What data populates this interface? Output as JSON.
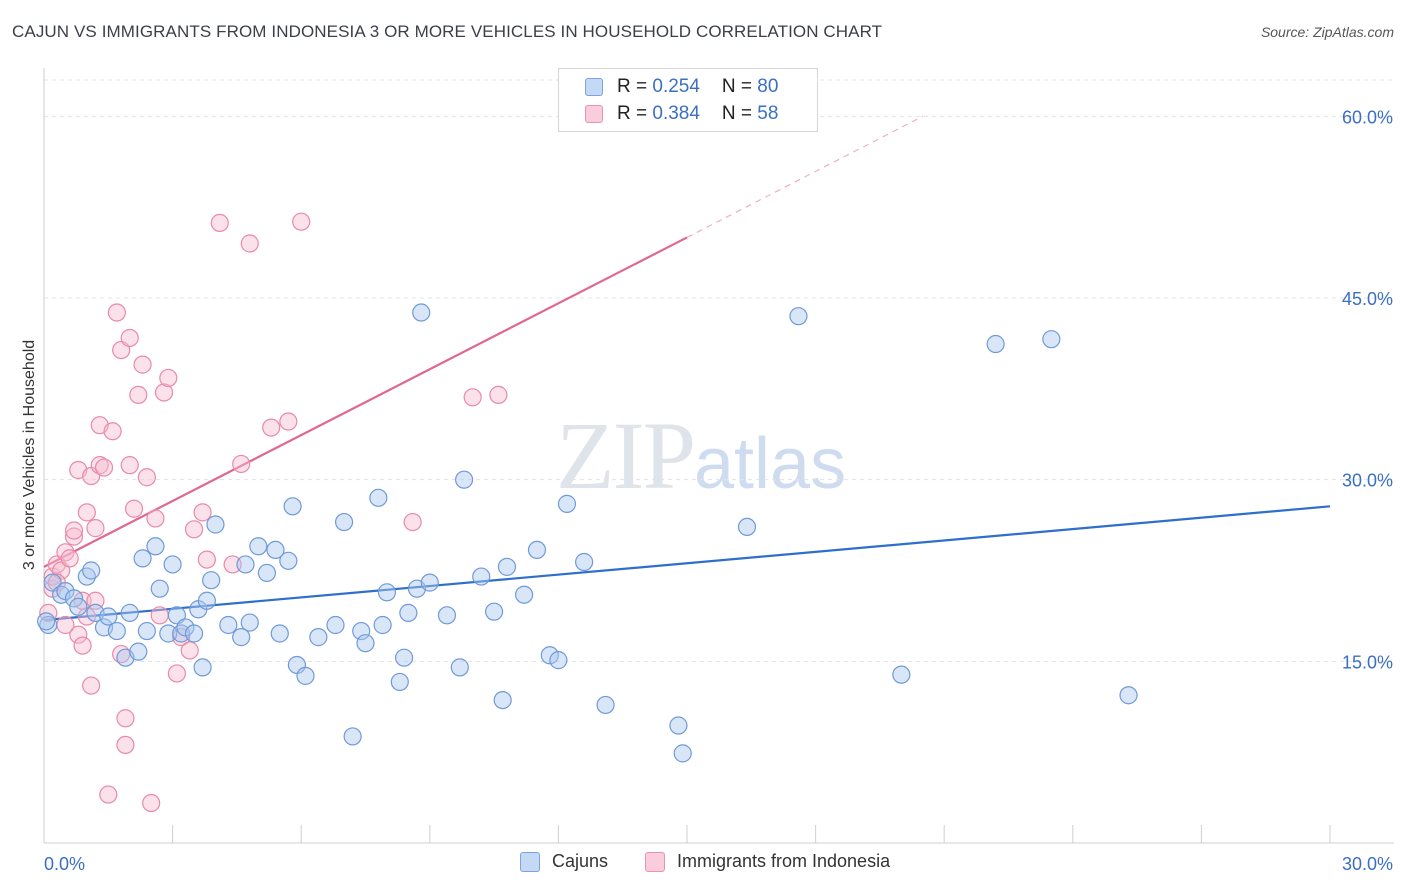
{
  "header": {
    "title": "CAJUN VS IMMIGRANTS FROM INDONESIA 3 OR MORE VEHICLES IN HOUSEHOLD CORRELATION CHART",
    "source": "Source: ZipAtlas.com"
  },
  "watermark": {
    "zip": "ZIP",
    "atlas": "atlas"
  },
  "legend": {
    "rows": [
      {
        "r_label": "R = ",
        "r_value": "0.254",
        "n_label": "N = ",
        "n_value": "80"
      },
      {
        "r_label": "R = ",
        "r_value": "0.384",
        "n_label": "N = ",
        "n_value": "58"
      }
    ]
  },
  "colors": {
    "cajuns_fill": "#aac8f0",
    "cajuns_stroke": "#6f9ad8",
    "cajuns_line": "#2f6fcc",
    "indo_fill": "#f6bcd0",
    "indo_stroke": "#e88aa8",
    "indo_line": "#e06890",
    "grid": "#e3e3e3",
    "axis_label": "#3a6fc4"
  },
  "chart_data": {
    "type": "scatter",
    "title": "CAJUN VS IMMIGRANTS FROM INDONESIA 3 OR MORE VEHICLES IN HOUSEHOLD CORRELATION CHART",
    "xlabel": "",
    "ylabel": "3 or more Vehicles in Household",
    "xlim": [
      0,
      30
    ],
    "ylim": [
      0,
      63
    ],
    "x_tick_labels": [
      "0.0%",
      "30.0%"
    ],
    "y_ticks": [
      15,
      30,
      45,
      60
    ],
    "y_tick_labels": [
      "15.0%",
      "30.0%",
      "45.0%",
      "60.0%"
    ],
    "grid": true,
    "legend_position": "bottom",
    "series": [
      {
        "name": "Cajuns",
        "r": 0.254,
        "n": 80,
        "trend": {
          "x": [
            0,
            30
          ],
          "y": [
            18.4,
            27.8
          ]
        },
        "points": [
          [
            0.1,
            18.0
          ],
          [
            0.2,
            21.5
          ],
          [
            0.4,
            20.5
          ],
          [
            0.5,
            20.8
          ],
          [
            0.7,
            20.2
          ],
          [
            0.8,
            19.5
          ],
          [
            1.0,
            22.0
          ],
          [
            1.1,
            22.5
          ],
          [
            1.2,
            19.0
          ],
          [
            1.4,
            17.8
          ],
          [
            1.5,
            18.7
          ],
          [
            1.7,
            17.5
          ],
          [
            1.9,
            15.3
          ],
          [
            2.0,
            19.0
          ],
          [
            2.2,
            15.8
          ],
          [
            2.3,
            23.5
          ],
          [
            2.4,
            17.5
          ],
          [
            2.6,
            24.5
          ],
          [
            2.7,
            21.0
          ],
          [
            2.9,
            17.3
          ],
          [
            3.0,
            23.0
          ],
          [
            3.1,
            18.8
          ],
          [
            3.2,
            17.3
          ],
          [
            3.3,
            17.8
          ],
          [
            3.5,
            17.3
          ],
          [
            3.6,
            19.3
          ],
          [
            3.7,
            14.5
          ],
          [
            3.8,
            20.0
          ],
          [
            3.9,
            21.7
          ],
          [
            4.0,
            26.3
          ],
          [
            4.3,
            18.0
          ],
          [
            4.6,
            17.0
          ],
          [
            4.7,
            23.0
          ],
          [
            4.8,
            18.2
          ],
          [
            5.0,
            24.5
          ],
          [
            5.2,
            22.3
          ],
          [
            5.4,
            24.2
          ],
          [
            5.5,
            17.3
          ],
          [
            5.7,
            23.3
          ],
          [
            5.8,
            27.8
          ],
          [
            5.9,
            14.7
          ],
          [
            6.1,
            13.8
          ],
          [
            6.4,
            17.0
          ],
          [
            6.8,
            18.0
          ],
          [
            7.0,
            26.5
          ],
          [
            7.2,
            8.8
          ],
          [
            7.4,
            17.5
          ],
          [
            7.5,
            16.5
          ],
          [
            7.8,
            28.5
          ],
          [
            7.9,
            18.0
          ],
          [
            8.0,
            20.7
          ],
          [
            8.3,
            13.3
          ],
          [
            8.4,
            15.3
          ],
          [
            8.5,
            19.0
          ],
          [
            8.7,
            21.0
          ],
          [
            8.8,
            43.8
          ],
          [
            9.0,
            21.5
          ],
          [
            9.4,
            18.8
          ],
          [
            9.7,
            14.5
          ],
          [
            9.8,
            30.0
          ],
          [
            10.2,
            22.0
          ],
          [
            10.5,
            19.1
          ],
          [
            10.7,
            11.8
          ],
          [
            10.8,
            22.8
          ],
          [
            11.2,
            20.5
          ],
          [
            11.5,
            24.2
          ],
          [
            11.8,
            15.5
          ],
          [
            12.0,
            15.1
          ],
          [
            12.2,
            28.0
          ],
          [
            12.6,
            23.2
          ],
          [
            13.1,
            11.4
          ],
          [
            14.8,
            9.7
          ],
          [
            14.9,
            7.4
          ],
          [
            16.4,
            26.1
          ],
          [
            17.6,
            43.5
          ],
          [
            20.0,
            13.9
          ],
          [
            22.2,
            41.2
          ],
          [
            23.5,
            41.6
          ],
          [
            25.3,
            12.2
          ],
          [
            0.05,
            18.3
          ]
        ]
      },
      {
        "name": "Immigrants from Indonesia",
        "r": 0.384,
        "n": 58,
        "trend": {
          "x": [
            0,
            15
          ],
          "y": [
            22.8,
            50.0
          ]
        },
        "trend_dashed": {
          "x": [
            15,
            20.5
          ],
          "y": [
            50.0,
            60.0
          ]
        },
        "points": [
          [
            0.1,
            19.0
          ],
          [
            0.2,
            21.0
          ],
          [
            0.2,
            22.0
          ],
          [
            0.3,
            23.0
          ],
          [
            0.4,
            22.5
          ],
          [
            0.5,
            24.0
          ],
          [
            0.6,
            23.5
          ],
          [
            0.7,
            25.3
          ],
          [
            0.7,
            25.8
          ],
          [
            0.8,
            30.8
          ],
          [
            0.8,
            17.2
          ],
          [
            0.9,
            16.3
          ],
          [
            0.9,
            20.0
          ],
          [
            1.0,
            18.7
          ],
          [
            1.0,
            27.3
          ],
          [
            1.1,
            30.3
          ],
          [
            1.1,
            13.0
          ],
          [
            1.2,
            26.0
          ],
          [
            1.3,
            31.2
          ],
          [
            1.3,
            34.5
          ],
          [
            1.4,
            31.0
          ],
          [
            1.5,
            4.0
          ],
          [
            1.6,
            34.0
          ],
          [
            1.7,
            43.8
          ],
          [
            1.8,
            40.7
          ],
          [
            1.8,
            15.6
          ],
          [
            1.9,
            8.1
          ],
          [
            1.9,
            10.3
          ],
          [
            2.0,
            41.7
          ],
          [
            2.1,
            27.6
          ],
          [
            2.2,
            37.0
          ],
          [
            2.3,
            39.5
          ],
          [
            2.4,
            30.2
          ],
          [
            2.5,
            3.3
          ],
          [
            2.6,
            26.8
          ],
          [
            2.7,
            18.8
          ],
          [
            2.8,
            37.2
          ],
          [
            2.9,
            38.4
          ],
          [
            3.1,
            14.0
          ],
          [
            3.2,
            17.0
          ],
          [
            3.4,
            15.9
          ],
          [
            3.5,
            25.9
          ],
          [
            3.7,
            27.3
          ],
          [
            3.8,
            23.4
          ],
          [
            4.1,
            51.2
          ],
          [
            4.4,
            23.0
          ],
          [
            4.6,
            31.3
          ],
          [
            4.8,
            49.5
          ],
          [
            5.3,
            34.3
          ],
          [
            5.7,
            34.8
          ],
          [
            6.0,
            51.3
          ],
          [
            8.6,
            26.5
          ],
          [
            10.0,
            36.8
          ],
          [
            10.6,
            37.0
          ],
          [
            2.0,
            31.2
          ],
          [
            0.3,
            21.5
          ],
          [
            0.5,
            18.0
          ],
          [
            1.2,
            20.0
          ]
        ]
      }
    ]
  }
}
